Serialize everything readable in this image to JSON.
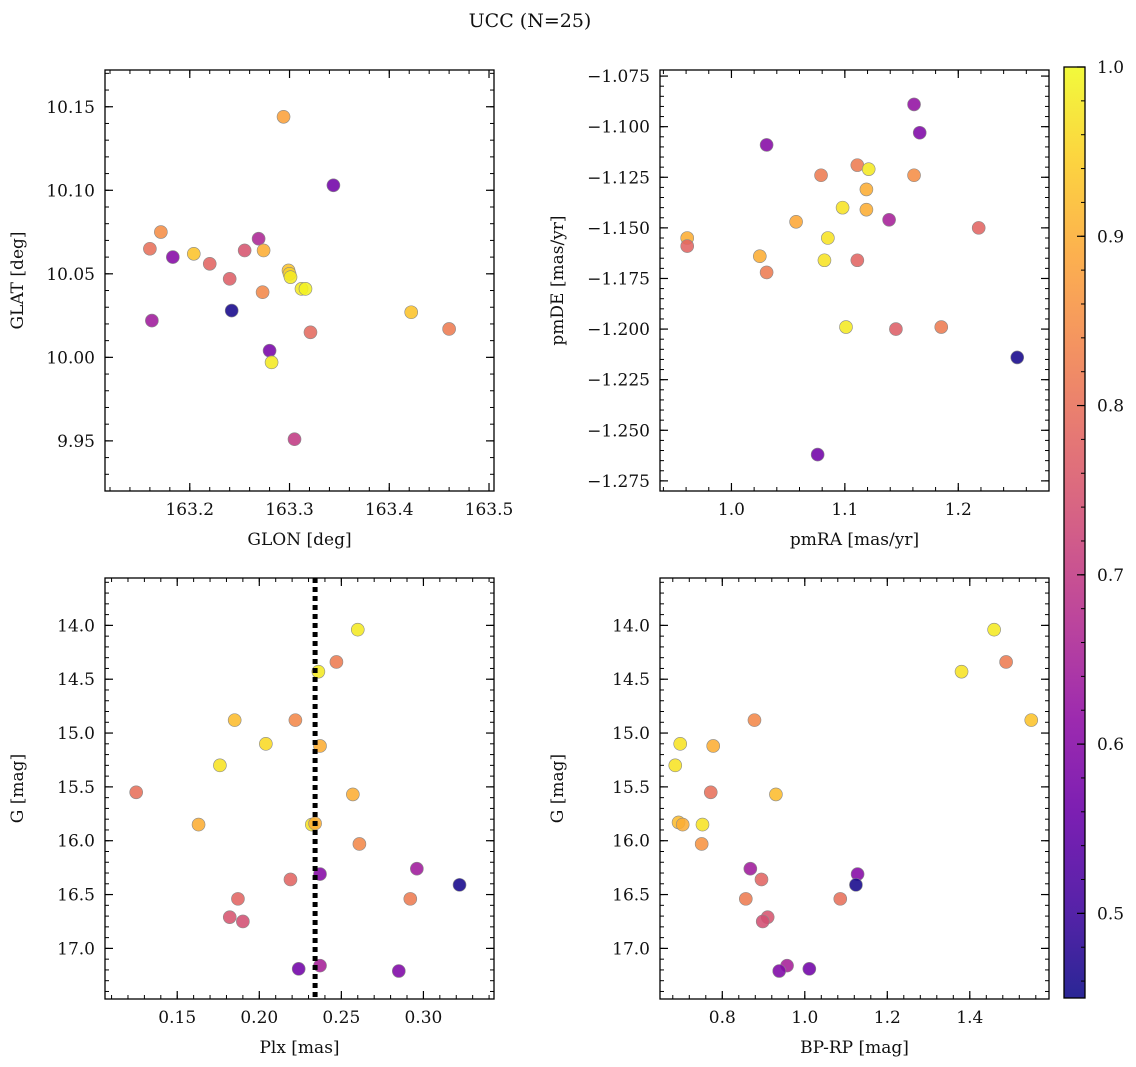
{
  "suptitle": "UCC (N=25)",
  "colorbar": {
    "colormap": "plasma",
    "range": [
      0.45,
      1.0
    ],
    "ticks": [
      0.5,
      0.6,
      0.7,
      0.8,
      0.9,
      1.0
    ],
    "tick_labels": [
      "0.5",
      "0.6",
      "0.7",
      "0.8",
      "0.9",
      "1.0"
    ]
  },
  "chart_data": [
    {
      "type": "scatter",
      "panel": "top-left",
      "title": "",
      "xlabel": "GLON [deg]",
      "ylabel": "GLAT [deg]",
      "xlim": [
        163.115,
        163.505
      ],
      "ylim": [
        9.92,
        10.172
      ],
      "xticks": [
        163.2,
        163.3,
        163.4,
        163.5
      ],
      "xtick_labels": [
        "163.2",
        "163.3",
        "163.4",
        "163.5"
      ],
      "yticks": [
        9.95,
        10.0,
        10.05,
        10.1,
        10.15
      ],
      "ytick_labels": [
        "9.95",
        "10.00",
        "10.05",
        "10.10",
        "10.15"
      ],
      "y_inverted": false,
      "points": [
        {
          "x": 163.294,
          "y": 10.144,
          "c": 0.88
        },
        {
          "x": 163.344,
          "y": 10.103,
          "c": 0.57
        },
        {
          "x": 163.171,
          "y": 10.075,
          "c": 0.85
        },
        {
          "x": 163.269,
          "y": 10.071,
          "c": 0.66
        },
        {
          "x": 163.16,
          "y": 10.065,
          "c": 0.8
        },
        {
          "x": 163.255,
          "y": 10.064,
          "c": 0.75
        },
        {
          "x": 163.274,
          "y": 10.064,
          "c": 0.9
        },
        {
          "x": 163.204,
          "y": 10.062,
          "c": 0.93
        },
        {
          "x": 163.183,
          "y": 10.06,
          "c": 0.6
        },
        {
          "x": 163.22,
          "y": 10.056,
          "c": 0.78
        },
        {
          "x": 163.299,
          "y": 10.052,
          "c": 0.93
        },
        {
          "x": 163.3,
          "y": 10.05,
          "c": 0.95
        },
        {
          "x": 163.301,
          "y": 10.048,
          "c": 0.98
        },
        {
          "x": 163.24,
          "y": 10.047,
          "c": 0.77
        },
        {
          "x": 163.312,
          "y": 10.041,
          "c": 0.98
        },
        {
          "x": 163.316,
          "y": 10.041,
          "c": 0.99
        },
        {
          "x": 163.273,
          "y": 10.039,
          "c": 0.84
        },
        {
          "x": 163.242,
          "y": 10.028,
          "c": 0.46
        },
        {
          "x": 163.422,
          "y": 10.027,
          "c": 0.93
        },
        {
          "x": 163.162,
          "y": 10.022,
          "c": 0.64
        },
        {
          "x": 163.46,
          "y": 10.017,
          "c": 0.82
        },
        {
          "x": 163.321,
          "y": 10.015,
          "c": 0.79
        },
        {
          "x": 163.28,
          "y": 10.004,
          "c": 0.58
        },
        {
          "x": 163.282,
          "y": 9.997,
          "c": 0.98
        },
        {
          "x": 163.305,
          "y": 9.951,
          "c": 0.7
        }
      ]
    },
    {
      "type": "scatter",
      "panel": "top-right",
      "title": "",
      "xlabel": "pmRA [mas/yr]",
      "ylabel": "pmDE [mas/yr]",
      "xlim": [
        0.937,
        1.28
      ],
      "ylim": [
        -1.28,
        -1.072
      ],
      "xticks": [
        1.0,
        1.1,
        1.2
      ],
      "xtick_labels": [
        "1.0",
        "1.1",
        "1.2"
      ],
      "yticks": [
        -1.275,
        -1.25,
        -1.225,
        -1.2,
        -1.175,
        -1.15,
        -1.125,
        -1.1,
        -1.075
      ],
      "ytick_labels": [
        "−1.275",
        "−1.250",
        "−1.225",
        "−1.200",
        "−1.175",
        "−1.150",
        "−1.125",
        "−1.100",
        "−1.075"
      ],
      "y_inverted": false,
      "points": [
        {
          "x": 1.161,
          "y": -1.089,
          "c": 0.62
        },
        {
          "x": 1.166,
          "y": -1.103,
          "c": 0.59
        },
        {
          "x": 1.031,
          "y": -1.109,
          "c": 0.6
        },
        {
          "x": 1.111,
          "y": -1.119,
          "c": 0.82
        },
        {
          "x": 1.121,
          "y": -1.121,
          "c": 0.98
        },
        {
          "x": 1.079,
          "y": -1.124,
          "c": 0.82
        },
        {
          "x": 1.161,
          "y": -1.124,
          "c": 0.85
        },
        {
          "x": 1.119,
          "y": -1.131,
          "c": 0.9
        },
        {
          "x": 1.098,
          "y": -1.14,
          "c": 0.97
        },
        {
          "x": 1.119,
          "y": -1.141,
          "c": 0.9
        },
        {
          "x": 1.139,
          "y": -1.146,
          "c": 0.65
        },
        {
          "x": 1.057,
          "y": -1.147,
          "c": 0.89
        },
        {
          "x": 1.218,
          "y": -1.15,
          "c": 0.78
        },
        {
          "x": 0.961,
          "y": -1.155,
          "c": 0.9
        },
        {
          "x": 1.085,
          "y": -1.155,
          "c": 0.97
        },
        {
          "x": 0.961,
          "y": -1.159,
          "c": 0.78
        },
        {
          "x": 1.025,
          "y": -1.164,
          "c": 0.9
        },
        {
          "x": 1.082,
          "y": -1.166,
          "c": 0.97
        },
        {
          "x": 1.111,
          "y": -1.166,
          "c": 0.78
        },
        {
          "x": 1.031,
          "y": -1.172,
          "c": 0.82
        },
        {
          "x": 1.101,
          "y": -1.199,
          "c": 0.98
        },
        {
          "x": 1.145,
          "y": -1.2,
          "c": 0.77
        },
        {
          "x": 1.185,
          "y": -1.199,
          "c": 0.82
        },
        {
          "x": 1.252,
          "y": -1.214,
          "c": 0.46
        },
        {
          "x": 1.076,
          "y": -1.262,
          "c": 0.57
        }
      ]
    },
    {
      "type": "scatter",
      "panel": "bottom-left",
      "title": "",
      "xlabel": "Plx [mas]",
      "ylabel": "G [mag]",
      "xlim": [
        0.106,
        0.343
      ],
      "ylim": [
        17.47,
        13.56
      ],
      "xticks": [
        0.15,
        0.2,
        0.25,
        0.3
      ],
      "xtick_labels": [
        "0.15",
        "0.20",
        "0.25",
        "0.30"
      ],
      "yticks": [
        14.0,
        14.5,
        15.0,
        15.5,
        16.0,
        16.5,
        17.0
      ],
      "ytick_labels": [
        "14.0",
        "14.5",
        "15.0",
        "15.5",
        "16.0",
        "16.5",
        "17.0"
      ],
      "y_inverted": true,
      "vline": {
        "x": 0.234,
        "style": "dotted",
        "color": "#000000"
      },
      "points": [
        {
          "x": 0.26,
          "y": 14.04,
          "c": 0.98
        },
        {
          "x": 0.247,
          "y": 14.34,
          "c": 0.82
        },
        {
          "x": 0.236,
          "y": 14.43,
          "c": 0.98
        },
        {
          "x": 0.185,
          "y": 14.88,
          "c": 0.92
        },
        {
          "x": 0.222,
          "y": 14.88,
          "c": 0.84
        },
        {
          "x": 0.204,
          "y": 15.1,
          "c": 0.96
        },
        {
          "x": 0.237,
          "y": 15.12,
          "c": 0.9
        },
        {
          "x": 0.176,
          "y": 15.3,
          "c": 0.97
        },
        {
          "x": 0.125,
          "y": 15.55,
          "c": 0.8
        },
        {
          "x": 0.257,
          "y": 15.57,
          "c": 0.9
        },
        {
          "x": 0.163,
          "y": 15.85,
          "c": 0.9
        },
        {
          "x": 0.232,
          "y": 15.85,
          "c": 0.97
        },
        {
          "x": 0.234,
          "y": 15.84,
          "c": 0.9
        },
        {
          "x": 0.261,
          "y": 16.03,
          "c": 0.84
        },
        {
          "x": 0.296,
          "y": 16.26,
          "c": 0.64
        },
        {
          "x": 0.237,
          "y": 16.31,
          "c": 0.6
        },
        {
          "x": 0.219,
          "y": 16.36,
          "c": 0.78
        },
        {
          "x": 0.322,
          "y": 16.41,
          "c": 0.46
        },
        {
          "x": 0.187,
          "y": 16.54,
          "c": 0.78
        },
        {
          "x": 0.292,
          "y": 16.54,
          "c": 0.82
        },
        {
          "x": 0.182,
          "y": 16.71,
          "c": 0.75
        },
        {
          "x": 0.19,
          "y": 16.75,
          "c": 0.74
        },
        {
          "x": 0.237,
          "y": 17.16,
          "c": 0.65
        },
        {
          "x": 0.224,
          "y": 17.19,
          "c": 0.57
        },
        {
          "x": 0.285,
          "y": 17.21,
          "c": 0.59
        }
      ]
    },
    {
      "type": "scatter",
      "panel": "bottom-right",
      "title": "",
      "xlabel": "BP-RP [mag]",
      "ylabel": "G [mag]",
      "xlim": [
        0.649,
        1.592
      ],
      "ylim": [
        17.47,
        13.56
      ],
      "xticks": [
        0.8,
        1.0,
        1.2,
        1.4
      ],
      "xtick_labels": [
        "0.8",
        "1.0",
        "1.2",
        "1.4"
      ],
      "yticks": [
        14.0,
        14.5,
        15.0,
        15.5,
        16.0,
        16.5,
        17.0
      ],
      "ytick_labels": [
        "14.0",
        "14.5",
        "15.0",
        "15.5",
        "16.0",
        "16.5",
        "17.0"
      ],
      "y_inverted": true,
      "points": [
        {
          "x": 1.459,
          "y": 14.04,
          "c": 0.98
        },
        {
          "x": 1.488,
          "y": 14.34,
          "c": 0.82
        },
        {
          "x": 1.38,
          "y": 14.43,
          "c": 0.97
        },
        {
          "x": 0.878,
          "y": 14.88,
          "c": 0.84
        },
        {
          "x": 1.549,
          "y": 14.88,
          "c": 0.93
        },
        {
          "x": 0.698,
          "y": 15.1,
          "c": 0.97
        },
        {
          "x": 0.778,
          "y": 15.12,
          "c": 0.9
        },
        {
          "x": 0.686,
          "y": 15.3,
          "c": 0.97
        },
        {
          "x": 0.772,
          "y": 15.55,
          "c": 0.8
        },
        {
          "x": 0.93,
          "y": 15.57,
          "c": 0.92
        },
        {
          "x": 0.694,
          "y": 15.83,
          "c": 0.92
        },
        {
          "x": 0.704,
          "y": 15.85,
          "c": 0.9
        },
        {
          "x": 0.752,
          "y": 15.85,
          "c": 0.97
        },
        {
          "x": 0.75,
          "y": 16.03,
          "c": 0.86
        },
        {
          "x": 0.868,
          "y": 16.26,
          "c": 0.64
        },
        {
          "x": 1.128,
          "y": 16.31,
          "c": 0.6
        },
        {
          "x": 0.895,
          "y": 16.36,
          "c": 0.78
        },
        {
          "x": 1.124,
          "y": 16.41,
          "c": 0.46
        },
        {
          "x": 0.857,
          "y": 16.54,
          "c": 0.82
        },
        {
          "x": 1.086,
          "y": 16.54,
          "c": 0.8
        },
        {
          "x": 0.91,
          "y": 16.71,
          "c": 0.75
        },
        {
          "x": 0.898,
          "y": 16.75,
          "c": 0.74
        },
        {
          "x": 0.957,
          "y": 17.16,
          "c": 0.65
        },
        {
          "x": 1.011,
          "y": 17.19,
          "c": 0.57
        },
        {
          "x": 0.938,
          "y": 17.21,
          "c": 0.59
        }
      ]
    }
  ]
}
